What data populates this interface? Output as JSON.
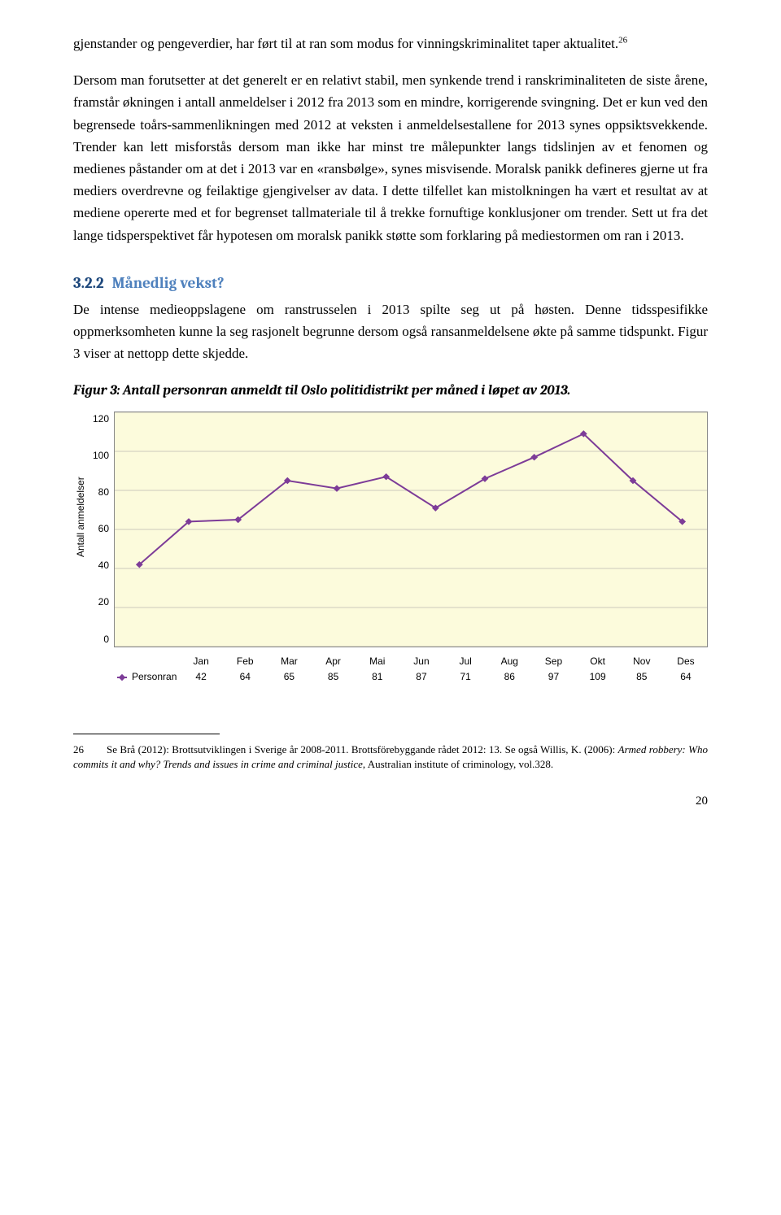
{
  "intro_fragment": "gjenstander og pengeverdier, har ført til at ran som modus for vinningskriminalitet taper aktualitet.",
  "intro_footnote_ref": "26",
  "main_para_part1": "Dersom man forutsetter at det generelt er en relativt stabil, men synkende trend i ranskriminaliteten de siste årene, framstår økningen i antall anmeldelser i 2012 fra 2013 som en mindre, korrigerende svingning. Det er kun ved den begrensede toårs-sammenlikningen med 2012 at veksten i anmeldelsestallene for 2013 synes oppsiktsvekkende. Trender kan lett misforstås dersom man ikke har minst tre målepunkter langs tidslinjen av et fenomen og medienes påstander om at det i 2013 var en «ransbølge», synes misvisende. Moralsk panikk defineres gjerne ut fra mediers overdrevne og feilaktige gjengivelser av data. I dette tilfellet kan mistolkningen ha vært et resultat av at mediene opererte med et for begrenset tallmateriale til å trekke fornuftige konklusjoner om trender. Sett ut fra det lange tidsperspektivet får hypotesen om moralsk panikk støtte som forklaring på mediestormen om ran i 2013.",
  "section": {
    "number": "3.2.2",
    "title": "Månedlig vekst?",
    "number_color": "#1f497d",
    "title_color": "#4f81bd"
  },
  "section_para": "De intense medieoppslagene om ranstrusselen i 2013 spilte seg ut på høsten. Denne tidsspesifikke oppmerksomheten kunne la seg rasjonelt begrunne dersom også ransanmeldelsene økte på samme tidspunkt. Figur 3 viser at nettopp dette skjedde.",
  "figure_caption": "Figur 3: Antall personran anmeldt til Oslo politidistrikt per måned i løpet av 2013.",
  "chart": {
    "type": "line",
    "y_label": "Antall anmeldelser",
    "y_ticks": [
      "120",
      "100",
      "80",
      "60",
      "40",
      "20",
      "0"
    ],
    "y_max": 120,
    "categories": [
      "Jan",
      "Feb",
      "Mar",
      "Apr",
      "Mai",
      "Jun",
      "Jul",
      "Aug",
      "Sep",
      "Okt",
      "Nov",
      "Des"
    ],
    "series_name": "Personran",
    "values": [
      42,
      64,
      65,
      85,
      81,
      87,
      71,
      86,
      97,
      109,
      85,
      64
    ],
    "plot_bg": "#fcfbdc",
    "grid_color": "#999999",
    "line_color": "#7d3c98",
    "line_width": 2,
    "marker_shape": "diamond",
    "marker_size": 6
  },
  "footnote": {
    "num": "26",
    "text_plain1": "Se Brå (2012): Brottsutviklingen i Sverige år 2008-2011. Brottsförebyggande rådet 2012: 13. Se også Willis, K. (2006): ",
    "text_italic": "Armed robbery: Who commits it and why? Trends and issues in crime and criminal justice",
    "text_plain2": ", Australian institute of criminology, vol.328."
  },
  "page_number": "20"
}
